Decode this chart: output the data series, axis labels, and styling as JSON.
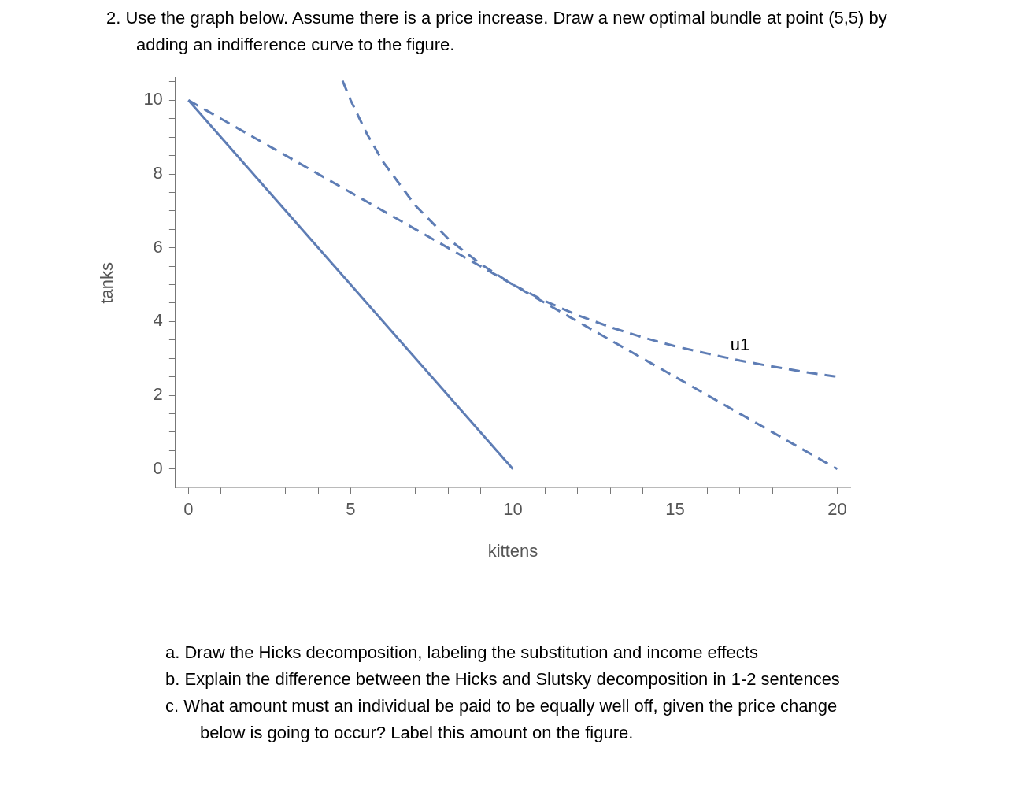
{
  "chart_data": {
    "type": "line",
    "title": "2. Use the graph below. Assume there is a price increase. Draw a new optimal bundle at point (5,5) by adding an indifference curve to the figure.",
    "xlabel": "kittens",
    "ylabel": "tanks",
    "series": [
      {
        "color": "#5e7db5",
        "line_style": "solid",
        "x": [
          0,
          10
        ],
        "values": [
          10,
          0
        ]
      },
      {
        "color": "#5e7db5",
        "line_style": "dashed",
        "x": [
          0,
          20
        ],
        "values": [
          10,
          0
        ]
      },
      {
        "color": "#5e7db5",
        "line_style": "dashed",
        "x": [
          4.75,
          5,
          5.5,
          6,
          7,
          8,
          9,
          10,
          11,
          12,
          13,
          14,
          15,
          16,
          17,
          18,
          19,
          20
        ],
        "values": [
          10.53,
          10,
          9.09,
          8.33,
          7.14,
          6.25,
          5.56,
          5,
          4.55,
          4.17,
          3.85,
          3.57,
          3.33,
          3.13,
          2.94,
          2.78,
          2.63,
          2.5
        ]
      }
    ],
    "marker": "none",
    "grid": false,
    "legend": false,
    "xlim": [
      -0.4,
      20.4
    ],
    "ylim": [
      -0.5,
      10.6
    ],
    "xticks": [
      0,
      {
        "value": 1,
        "label": null
      },
      {
        "value": 2,
        "label": null
      },
      {
        "value": 3,
        "label": null
      },
      {
        "value": 4,
        "label": null
      },
      5,
      {
        "value": 6,
        "label": null
      },
      {
        "value": 7,
        "label": null
      },
      {
        "value": 8,
        "label": null
      },
      {
        "value": 9,
        "label": null
      },
      10,
      {
        "value": 11,
        "label": null
      },
      {
        "value": 12,
        "label": null
      },
      {
        "value": 13,
        "label": null
      },
      {
        "value": 14,
        "label": null
      },
      15,
      {
        "value": 16,
        "label": null
      },
      {
        "value": 17,
        "label": null
      },
      {
        "value": 18,
        "label": null
      },
      {
        "value": 19,
        "label": null
      },
      20
    ],
    "yticks": [
      0,
      {
        "value": 0.5,
        "label": null
      },
      {
        "value": 1,
        "label": null
      },
      {
        "value": 1.5,
        "label": null
      },
      2,
      {
        "value": 2.5,
        "label": null
      },
      {
        "value": 3,
        "label": null
      },
      {
        "value": 3.5,
        "label": null
      },
      4,
      {
        "value": 4.5,
        "label": null
      },
      {
        "value": 5,
        "label": null
      },
      {
        "value": 5.5,
        "label": null
      },
      6,
      {
        "value": 6.5,
        "label": null
      },
      {
        "value": 7,
        "label": null
      },
      {
        "value": 7.5,
        "label": null
      },
      8,
      {
        "value": 8.5,
        "label": null
      },
      {
        "value": 9,
        "label": null
      },
      {
        "value": 9.5,
        "label": null
      },
      10,
      {
        "value": 10.5,
        "label": null
      }
    ],
    "annotations": [
      {
        "text": "u1",
        "x": 17,
        "y": 2.94
      },
      "a. Draw the Hicks decomposition, labeling the substitution and income effects",
      "b. Explain the difference between the Hicks and Slutsky decomposition in 1-2 sentences",
      "c. What amount must an individual be paid to be equally well off, given the price change below is going to occur? Label this amount on the figure."
    ]
  }
}
